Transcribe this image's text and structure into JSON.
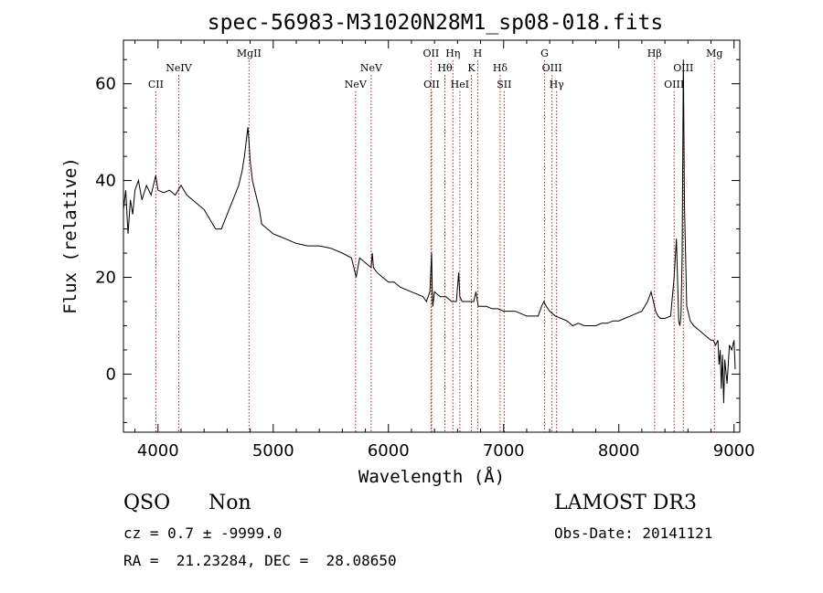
{
  "chart_data": {
    "type": "line",
    "title": "spec-56983-M31020N28M1_sp08-018.fits",
    "xlabel": "Wavelength (Å)",
    "ylabel": "Flux (relative)",
    "xlim": [
      3700,
      9050
    ],
    "ylim": [
      -12,
      69
    ],
    "xticks": [
      4000,
      5000,
      6000,
      7000,
      8000,
      9000
    ],
    "xtick_labels": [
      "4000",
      "5000",
      "6000",
      "7000",
      "8000",
      "9000"
    ],
    "yticks": [
      0,
      20,
      40,
      60
    ],
    "ytick_labels": [
      "0",
      "20",
      "40",
      "60"
    ],
    "spectrum": {
      "name": "flux",
      "x": [
        3700,
        3720,
        3740,
        3760,
        3780,
        3800,
        3830,
        3860,
        3900,
        3940,
        3980,
        4000,
        4050,
        4100,
        4150,
        4200,
        4250,
        4300,
        4350,
        4400,
        4450,
        4500,
        4550,
        4600,
        4650,
        4700,
        4730,
        4750,
        4770,
        4780,
        4790,
        4800,
        4820,
        4850,
        4880,
        4900,
        4950,
        5000,
        5050,
        5100,
        5200,
        5300,
        5400,
        5500,
        5600,
        5680,
        5700,
        5720,
        5750,
        5800,
        5850,
        5860,
        5870,
        5900,
        5950,
        6000,
        6050,
        6100,
        6150,
        6200,
        6250,
        6300,
        6330,
        6360,
        6375,
        6380,
        6385,
        6400,
        6450,
        6500,
        6550,
        6590,
        6610,
        6620,
        6640,
        6700,
        6740,
        6760,
        6780,
        6800,
        6850,
        6900,
        6950,
        7000,
        7050,
        7100,
        7150,
        7200,
        7250,
        7300,
        7330,
        7350,
        7370,
        7400,
        7450,
        7500,
        7550,
        7600,
        7650,
        7700,
        7750,
        7800,
        7850,
        7900,
        7950,
        8000,
        8050,
        8100,
        8150,
        8200,
        8250,
        8280,
        8300,
        8320,
        8340,
        8360,
        8400,
        8450,
        8480,
        8500,
        8520,
        8530,
        8540,
        8550,
        8560,
        8570,
        8590,
        8620,
        8650,
        8700,
        8750,
        8800,
        8820,
        8840,
        8860,
        8870,
        8880,
        8890,
        8900,
        8910,
        8920,
        8940,
        8960,
        8980,
        9000,
        9010
      ],
      "y": [
        34,
        38,
        29,
        36,
        33,
        38,
        40,
        36,
        39,
        37,
        41,
        38,
        37.5,
        38,
        37,
        39,
        37,
        36,
        35,
        34,
        32,
        30,
        30,
        33,
        36,
        39,
        42,
        45,
        49,
        51,
        48,
        44,
        40,
        37,
        34,
        31,
        30,
        29,
        28.5,
        28,
        27,
        26.5,
        26.5,
        26,
        25,
        24,
        22,
        20,
        24,
        23,
        22,
        25,
        22,
        21,
        20,
        19,
        19,
        18,
        17.5,
        17,
        16.5,
        16,
        15,
        17,
        25,
        18,
        14,
        17,
        16,
        16,
        15,
        15,
        21,
        16,
        15,
        15,
        15,
        17,
        14,
        14,
        14,
        13.5,
        13.5,
        13,
        13,
        13,
        12.5,
        12,
        12,
        12,
        14,
        15,
        14,
        13,
        12,
        11.5,
        11,
        10,
        10.5,
        10,
        10,
        10,
        10.5,
        10.5,
        11,
        11,
        11.5,
        12,
        12.5,
        13,
        15,
        17,
        15,
        13,
        12,
        11.5,
        11.5,
        12,
        20,
        28,
        11,
        10,
        12,
        25,
        65,
        35,
        14,
        11,
        10,
        9,
        8,
        7,
        7,
        6,
        7,
        2,
        5,
        -3,
        4,
        -6,
        3,
        -2,
        6,
        5,
        7,
        1
      ]
    },
    "lines": [
      {
        "label": "CII",
        "x": 3981,
        "row": 3
      },
      {
        "label": "NeIV",
        "x": 4180,
        "row": 2
      },
      {
        "label": "MgII",
        "x": 4790,
        "row": 1
      },
      {
        "label": "NeV",
        "x": 5715,
        "row": 3
      },
      {
        "label": "NeV",
        "x": 5850,
        "row": 2
      },
      {
        "label": "OII",
        "x": 6370,
        "row": 1
      },
      {
        "label": "OII",
        "x": 6375,
        "row": 3
      },
      {
        "label": "Hθ",
        "x": 6490,
        "row": 2
      },
      {
        "label": "Hη",
        "x": 6560,
        "row": 1
      },
      {
        "label": "HeI",
        "x": 6620,
        "row": 3
      },
      {
        "label": "K",
        "x": 6720,
        "row": 2
      },
      {
        "label": "H",
        "x": 6775,
        "row": 1
      },
      {
        "label": "Hδ",
        "x": 6970,
        "row": 2
      },
      {
        "label": "SII",
        "x": 7005,
        "row": 3
      },
      {
        "label": "G",
        "x": 7355,
        "row": 1
      },
      {
        "label": "OIII",
        "x": 7420,
        "row": 2
      },
      {
        "label": "Hγ",
        "x": 7460,
        "row": 3
      },
      {
        "label": "Hβ",
        "x": 8310,
        "row": 1
      },
      {
        "label": "OIII",
        "x": 8480,
        "row": 3
      },
      {
        "label": "OIII",
        "x": 8560,
        "row": 2
      },
      {
        "label": "Mg",
        "x": 8830,
        "row": 1
      }
    ]
  },
  "info": {
    "class": "QSO",
    "subclass": "Non",
    "survey": "LAMOST DR3",
    "cz": "cz = 0.7 ± -9999.0",
    "obs_date": "Obs-Date: 20141121",
    "coords": "RA =  21.23284, DEC =  28.08650"
  },
  "colors": {
    "spectrum": "#000000",
    "line_marker": "#b22222",
    "axes": "#000000"
  }
}
